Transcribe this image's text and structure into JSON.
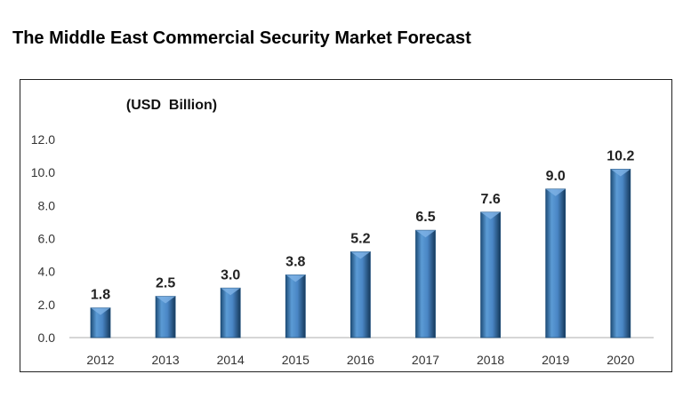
{
  "title": "The Middle East Commercial Security Market Forecast",
  "chart_data": {
    "type": "bar",
    "title": "The Middle East Commercial Security Market Forecast",
    "unit_label": "(USD  Billion)",
    "categories": [
      "2012",
      "2013",
      "2014",
      "2015",
      "2016",
      "2017",
      "2018",
      "2019",
      "2020"
    ],
    "values": [
      1.8,
      2.5,
      3.0,
      3.8,
      5.2,
      6.5,
      7.6,
      9.0,
      10.2
    ],
    "data_labels": [
      "1.8",
      "2.5",
      "3.0",
      "3.8",
      "5.2",
      "6.5",
      "7.6",
      "9.0",
      "10.2"
    ],
    "y_ticks": [
      "0.0",
      "2.0",
      "4.0",
      "6.0",
      "8.0",
      "10.0",
      "12.0"
    ],
    "ylim": [
      0,
      12
    ],
    "grid": false,
    "bar_color": "#4a86c5",
    "bar_edge_color": "#1f4e79"
  }
}
